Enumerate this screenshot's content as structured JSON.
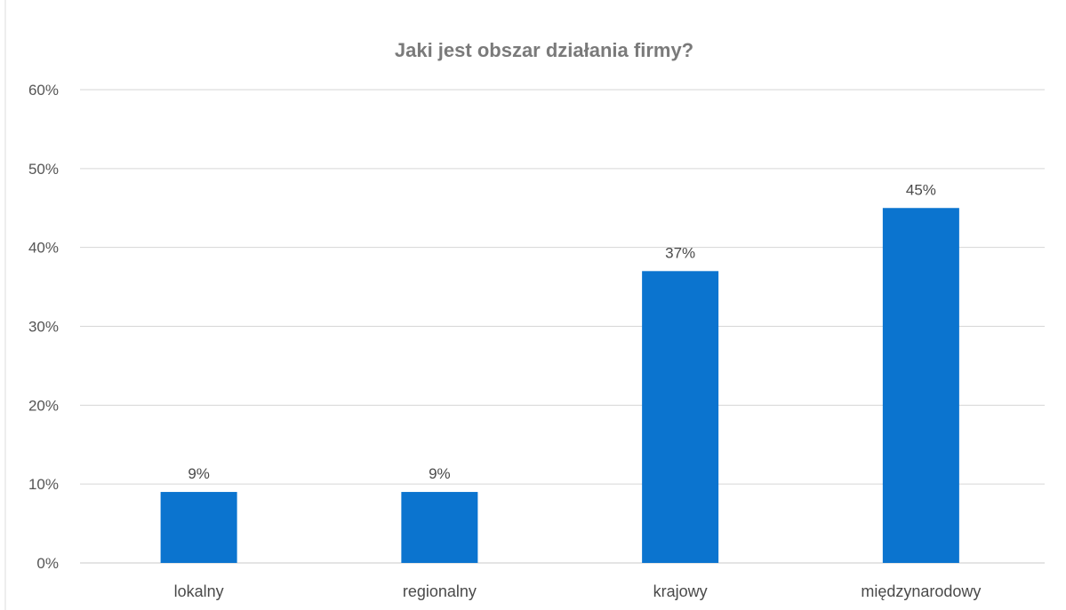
{
  "chart_data": {
    "type": "bar",
    "title": "Jaki jest obszar działania firmy?",
    "categories": [
      "lokalny",
      "regionalny",
      "krajowy",
      "międzynarodowy"
    ],
    "values": [
      9,
      9,
      37,
      45
    ],
    "data_labels": [
      "9%",
      "9%",
      "37%",
      "45%"
    ],
    "ylim": [
      0,
      60
    ],
    "yticks": [
      0,
      10,
      20,
      30,
      40,
      50,
      60
    ],
    "ytick_labels": [
      "0%",
      "10%",
      "20%",
      "30%",
      "40%",
      "50%",
      "60%"
    ],
    "xlabel": "",
    "ylabel": "",
    "grid": true,
    "legend": "none",
    "bar_color": "#0b74cf"
  }
}
